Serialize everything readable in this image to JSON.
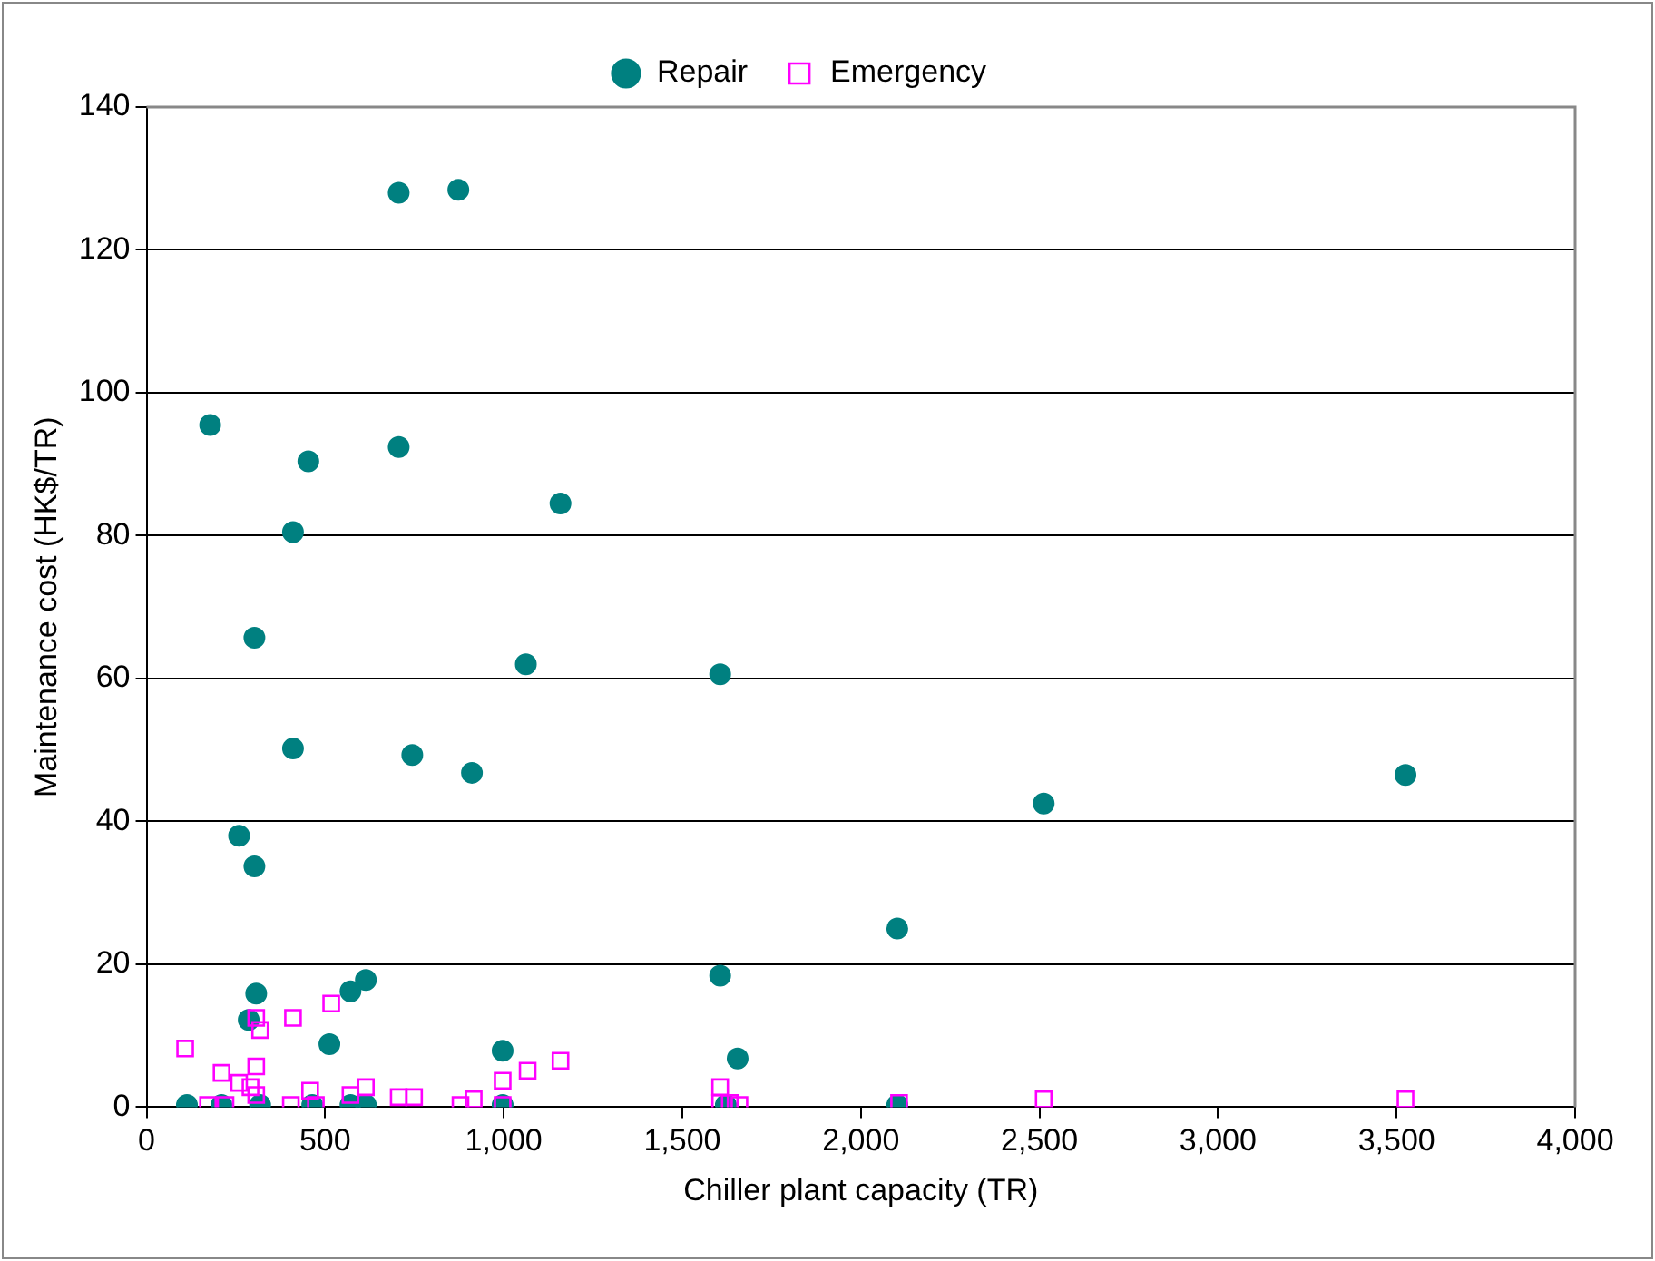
{
  "chart_data": {
    "type": "scatter",
    "xlabel": "Chiller plant capacity (TR)",
    "ylabel": "Maintenance cost (HK$/TR)",
    "xlim": [
      0,
      4000
    ],
    "xticks": [
      0,
      500,
      {
        "value": 1000,
        "label": "1,000"
      },
      {
        "value": 1500,
        "label": "1,500"
      },
      {
        "value": 2000,
        "label": "2,000"
      },
      {
        "value": 2500,
        "label": "2,500"
      },
      {
        "value": 3000,
        "label": "3,000"
      },
      {
        "value": 3500,
        "label": "3,500"
      },
      {
        "value": 4000,
        "label": "4,000"
      }
    ],
    "ylim": [
      0,
      140
    ],
    "yticks": [
      0,
      20,
      40,
      60,
      80,
      100,
      120,
      140
    ],
    "grid": "y",
    "legend": "top",
    "series": [
      {
        "name": "Repair",
        "color": "#008080",
        "marker": "circle",
        "x": [
          113,
          178,
          259,
          302,
          302,
          307,
          286,
          318,
          410,
          410,
          453,
          512,
          571,
          614,
          706,
          706,
          873,
          744,
          911,
          997,
          997,
          1062,
          1159,
          1606,
          1606,
          1655,
          1622,
          2102,
          2102,
          2512,
          3525,
          210,
          464,
          571,
          614
        ],
        "values": [
          0.3,
          95.5,
          38,
          65.7,
          33.7,
          15.9,
          12.2,
          0.3,
          80.5,
          50.2,
          90.4,
          8.8,
          16.2,
          17.8,
          128,
          92.4,
          128.4,
          49.3,
          46.8,
          0.3,
          7.9,
          62,
          84.5,
          60.6,
          18.4,
          6.8,
          0.3,
          25,
          0.3,
          42.5,
          46.5,
          0.3,
          0.3,
          0.3,
          0.3
        ]
      },
      {
        "name": "Emergency",
        "color": "#ff00ff",
        "marker": "square",
        "x": [
          108,
          210,
          172,
          221,
          259,
          291,
          307,
          318,
          307,
          307,
          410,
          404,
          458,
          474,
          517,
          571,
          614,
          706,
          749,
          879,
          916,
          997,
          997,
          1067,
          1159,
          1606,
          1606,
          1633,
          1660,
          2107,
          2512,
          3525
        ],
        "values": [
          8.2,
          4.8,
          0.3,
          0.3,
          3.4,
          2.8,
          12.5,
          10.8,
          5.7,
          1.7,
          12.5,
          0.3,
          2.3,
          0.3,
          14.5,
          1.7,
          2.8,
          1.4,
          1.4,
          0.3,
          1.1,
          3.7,
          0.3,
          5.1,
          6.5,
          2.8,
          0.6,
          0.6,
          0.3,
          0.6,
          1.1,
          1.1
        ]
      }
    ]
  }
}
